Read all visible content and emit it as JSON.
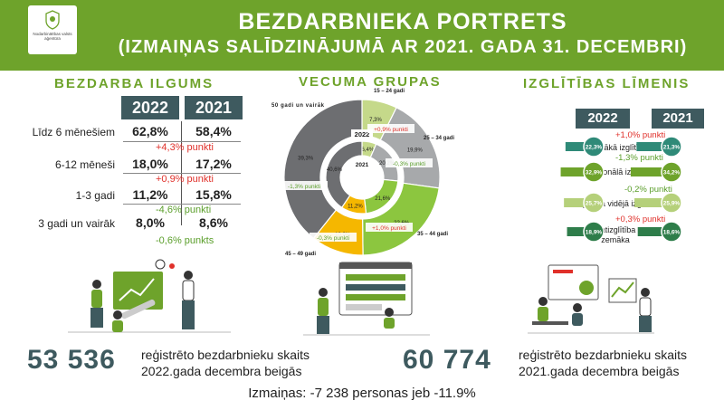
{
  "header": {
    "logo_text": "Nodarbinātības valsts aģentūra",
    "title_line1": "BEZDARBNIEKA PORTRETS",
    "title_line2": "(IZMAIŅAS SALĪDZINĀJUMĀ AR 2021. GADA 31. DECEMBRI)"
  },
  "duration": {
    "title": "BEZDARBA ILGUMS",
    "years": [
      "2022",
      "2021"
    ],
    "rows": [
      {
        "label": "Līdz 6 mēnešiem",
        "v2022": "62,8%",
        "v2021": "58,4%",
        "change": "+4,3% punkti"
      },
      {
        "label": "6-12 mēneši",
        "v2022": "18,0%",
        "v2021": "17,2%",
        "change": "+0,9% punkti"
      },
      {
        "label": "1-3 gadi",
        "v2022": "11,2%",
        "v2021": "15,8%",
        "change": "-4,6% punkti"
      },
      {
        "label": "3 gadi un vairāk",
        "v2022": "8,0%",
        "v2021": "8,6%",
        "change": "-0,6% punkts"
      }
    ]
  },
  "age": {
    "title": "VECUMA GRUPAS",
    "center_2022": "2022",
    "center_2021": "2021",
    "groups": [
      {
        "label": "15 – 24 gadi",
        "v2022": "7,3%",
        "v2021": "6,4%",
        "change": "+0,9% punkti"
      },
      {
        "label": "25 – 34 gadi",
        "v2022": "19,9%",
        "v2021": "20,2%",
        "change": "-0,3% punkti"
      },
      {
        "label": "35 – 44 gadi",
        "v2022": "22,6%",
        "v2021": "21,6%",
        "change": "+1,0% punkti"
      },
      {
        "label": "45 – 49 gadi",
        "v2022": "10,9%",
        "v2021": "11,2%",
        "change": "-0,3% punkti"
      },
      {
        "label": "50 gadi un vairāk",
        "v2022": "39,3%",
        "v2021": "40,6%",
        "change": "-1,3% punkti"
      }
    ]
  },
  "education": {
    "title": "IZGLĪTĪBAS LĪMENIS",
    "years": [
      "2022",
      "2021"
    ],
    "rows": [
      {
        "label": "Augstākā izglītība",
        "v2022": "22,3%",
        "v2021": "21,3%",
        "change": "+1,0% punkti"
      },
      {
        "label": "Profesionālā izglītība",
        "v2022": "32,9%",
        "v2021": "34,2%",
        "change": "-1,3% punkti"
      },
      {
        "label": "Vispārējā vidējā izglītība",
        "v2022": "25,7%",
        "v2021": "25,9%",
        "change": "-0,2% punkti"
      },
      {
        "label": "Pamatizglītība un zemāka",
        "v2022": "18,9%",
        "v2021": "18,6%",
        "change": "+0,3% punkti"
      }
    ]
  },
  "bottom": {
    "num_2022": "53 536",
    "desc_2022_line1": "reģistrēto bezdarbnieku skaits",
    "desc_2022_line2": "2022.gada decembra beigās",
    "num_2021": "60 774",
    "desc_2021_line1": "reģistrēto bezdarbnieku skaits",
    "desc_2021_line2": "2021.gada decembra beigās",
    "changes": "Izmaiņas: -7 238 personas jeb -11.9%"
  },
  "colors": {
    "brand_green": "#6ea32b",
    "dark_teal": "#3e5a5f",
    "increase_red": "#e0302a",
    "decrease_green": "#5a9e2a"
  },
  "chart_data": [
    {
      "type": "table",
      "title": "BEZDARBA ILGUMS",
      "categories": [
        "Līdz 6 mēnešiem",
        "6-12 mēneši",
        "1-3 gadi",
        "3 gadi un vairāk"
      ],
      "series": [
        {
          "name": "2022",
          "values": [
            62.8,
            18.0,
            11.2,
            8.0
          ]
        },
        {
          "name": "2021",
          "values": [
            58.4,
            17.2,
            15.8,
            8.6
          ]
        }
      ]
    },
    {
      "type": "pie",
      "title": "VECUMA GRUPAS",
      "categories": [
        "15 – 24 gadi",
        "25 – 34 gadi",
        "35 – 44 gadi",
        "45 – 49 gadi",
        "50 gadi un vairāk"
      ],
      "series": [
        {
          "name": "2022",
          "values": [
            7.3,
            19.9,
            22.6,
            10.9,
            39.3
          ]
        },
        {
          "name": "2021",
          "values": [
            6.4,
            20.2,
            21.6,
            11.2,
            40.6
          ]
        }
      ],
      "colors": [
        "#c5d98a",
        "#a7a9ab",
        "#8cc63f",
        "#f5b700",
        "#6d6e71"
      ]
    },
    {
      "type": "bar",
      "title": "IZGLĪTĪBAS LĪMENIS",
      "categories": [
        "Augstākā izglītība",
        "Profesionālā izglītība",
        "Vispārējā vidējā izglītība",
        "Pamatizglītība un zemāka"
      ],
      "series": [
        {
          "name": "2022",
          "values": [
            22.3,
            32.9,
            25.7,
            18.9
          ]
        },
        {
          "name": "2021",
          "values": [
            21.3,
            34.2,
            25.9,
            18.6
          ]
        }
      ],
      "colors": [
        "#2f8a78",
        "#6ea32b",
        "#b5d07a",
        "#2e7d4a"
      ]
    }
  ]
}
